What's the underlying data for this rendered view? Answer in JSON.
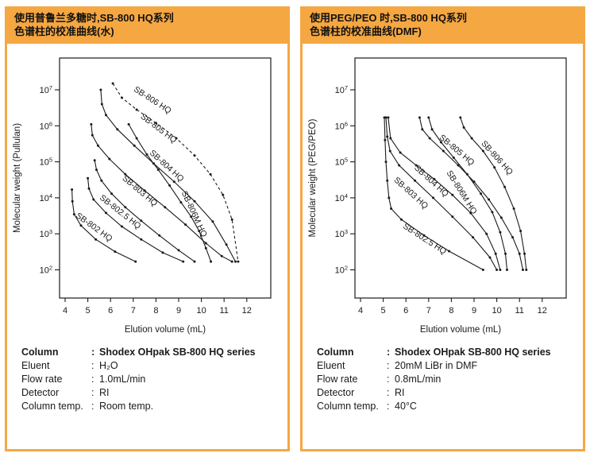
{
  "colon": ":",
  "accent_color": "#F5A742",
  "panels": [
    {
      "header_lines": [
        "使用普鲁兰多糖时,SB-800 HQ系列",
        "色谱柱的校准曲线(水)"
      ],
      "specs": [
        {
          "label": "Column",
          "value": "Shodex OHpak SB-800 HQ series"
        },
        {
          "label": "Eluent",
          "value": "H₂O"
        },
        {
          "label": "Flow rate",
          "value": "1.0mL/min"
        },
        {
          "label": "Detector",
          "value": "RI"
        },
        {
          "label": "Column temp.",
          "value": "Room temp."
        }
      ]
    },
    {
      "header_lines": [
        "使用PEG/PEO 时,SB-800 HQ系列",
        "色谱柱的校准曲线(DMF)"
      ],
      "specs": [
        {
          "label": "Column",
          "value": "Shodex OHpak SB-800 HQ series"
        },
        {
          "label": "Eluent",
          "value": "20mM LiBr in DMF"
        },
        {
          "label": "Flow rate",
          "value": "0.8mL/min"
        },
        {
          "label": "Detector",
          "value": "RI"
        },
        {
          "label": "Column temp.",
          "value": "40°C"
        }
      ]
    }
  ],
  "chart_data": [
    {
      "type": "line",
      "title": "Calibration curves of SB-800 HQ series with pullulan (water)",
      "xlabel": "Elution volume (mL)",
      "ylabel": "Molecular weight (Pullulan)",
      "x_ticks": [
        4,
        5,
        6,
        7,
        8,
        9,
        10,
        11,
        12
      ],
      "y_tick_exponents": [
        2,
        3,
        4,
        5,
        6,
        7
      ],
      "xlim": [
        3.75,
        12.85
      ],
      "ylim_log": [
        1.6,
        7.9
      ],
      "grid": false,
      "legend_position": "on-curve",
      "series": [
        {
          "name": "SB-802 HQ",
          "style": "solid",
          "points": [
            [
              4.3,
              17000
            ],
            [
              4.32,
              8000
            ],
            [
              4.4,
              3500
            ],
            [
              4.7,
              1700
            ],
            [
              5.35,
              700
            ],
            [
              6.2,
              320
            ],
            [
              7.1,
              170
            ]
          ],
          "label_at": [
            4.45,
            3000
          ],
          "label_angle": 36
        },
        {
          "name": "SB-802.5 HQ",
          "style": "solid",
          "points": [
            [
              5.0,
              35000
            ],
            [
              5.05,
              18000
            ],
            [
              5.25,
              9000
            ],
            [
              5.8,
              3800
            ],
            [
              6.5,
              1600
            ],
            [
              7.35,
              700
            ],
            [
              8.3,
              300
            ],
            [
              9.2,
              170
            ]
          ],
          "label_at": [
            5.5,
            9500
          ],
          "label_angle": 38
        },
        {
          "name": "SB-803 HQ",
          "style": "solid",
          "points": [
            [
              5.3,
              110000
            ],
            [
              5.38,
              60000
            ],
            [
              5.6,
              30000
            ],
            [
              6.05,
              13000
            ],
            [
              6.65,
              5500
            ],
            [
              7.35,
              2300
            ],
            [
              8.15,
              900
            ],
            [
              9.0,
              350
            ],
            [
              9.7,
              170
            ]
          ],
          "label_at": [
            6.5,
            33000
          ],
          "label_angle": 40
        },
        {
          "name": "SB-804 HQ",
          "style": "solid",
          "points": [
            [
              5.15,
              1100000
            ],
            [
              5.2,
              550000
            ],
            [
              5.45,
              280000
            ],
            [
              5.95,
              120000
            ],
            [
              6.65,
              45000
            ],
            [
              7.5,
              16000
            ],
            [
              8.4,
              5500
            ],
            [
              9.3,
              1800
            ],
            [
              10.2,
              550
            ],
            [
              10.9,
              240
            ],
            [
              11.35,
              170
            ]
          ],
          "label_at": [
            7.7,
            170000
          ],
          "label_angle": 42
        },
        {
          "name": "SB-805 HQ",
          "style": "solid",
          "points": [
            [
              5.57,
              10000000
            ],
            [
              5.62,
              4000000
            ],
            [
              5.8,
              2000000
            ],
            [
              6.3,
              800000
            ],
            [
              7.05,
              280000
            ],
            [
              7.9,
              90000
            ],
            [
              8.8,
              28000
            ],
            [
              9.7,
              8000
            ],
            [
              10.5,
              2200
            ],
            [
              11.1,
              500
            ],
            [
              11.5,
              170
            ]
          ],
          "label_at": [
            7.3,
            1700000
          ],
          "label_angle": 37
        },
        {
          "name": "SB-806 HQ",
          "style": "dashed",
          "points": [
            [
              6.1,
              15000000
            ],
            [
              6.5,
              6000000
            ],
            [
              7.15,
              2800000
            ],
            [
              8.0,
              1200000
            ],
            [
              8.9,
              450000
            ],
            [
              9.7,
              150000
            ],
            [
              10.4,
              45000
            ],
            [
              10.95,
              12000
            ],
            [
              11.35,
              2500
            ],
            [
              11.62,
              170
            ]
          ],
          "label_at": [
            7.0,
            9500000
          ],
          "label_angle": 33
        },
        {
          "name": "SB-806M HQ",
          "style": "solid",
          "points": [
            [
              6.8,
              1100000
            ],
            [
              7.15,
              450000
            ],
            [
              7.6,
              160000
            ],
            [
              8.1,
              60000
            ],
            [
              8.6,
              22000
            ],
            [
              9.1,
              7500
            ],
            [
              9.55,
              3000
            ],
            [
              9.9,
              1200
            ],
            [
              10.2,
              400
            ],
            [
              10.42,
              170
            ]
          ],
          "label_at": [
            9.12,
            14000
          ],
          "label_angle": 65
        }
      ]
    },
    {
      "type": "line",
      "title": "Calibration curves of SB-800 HQ series with PEG/PEO (DMF)",
      "xlabel": "Elution volume (mL)",
      "ylabel": "Molecular weight (PEG/PEO)",
      "x_ticks": [
        4,
        5,
        6,
        7,
        8,
        9,
        10,
        11,
        12
      ],
      "y_tick_exponents": [
        2,
        3,
        4,
        5,
        6,
        7
      ],
      "xlim": [
        3.75,
        12.85
      ],
      "ylim_log": [
        1.6,
        7.9
      ],
      "grid": false,
      "legend_position": "on-curve",
      "series": [
        {
          "name": "SB-802.5 HQ",
          "style": "solid",
          "points": [
            [
              5.05,
              1700000
            ],
            [
              5.08,
              400000
            ],
            [
              5.12,
              100000
            ],
            [
              5.18,
              30000
            ],
            [
              5.25,
              10000
            ],
            [
              5.35,
              5000
            ],
            [
              5.8,
              2500
            ],
            [
              6.8,
              900
            ],
            [
              7.9,
              330
            ],
            [
              9.4,
              100
            ]
          ],
          "label_at": [
            5.85,
            1500
          ],
          "label_angle": 33
        },
        {
          "name": "SB-803 HQ",
          "style": "solid",
          "points": [
            [
              5.12,
              1700000
            ],
            [
              5.18,
              500000
            ],
            [
              5.3,
              200000
            ],
            [
              5.7,
              80000
            ],
            [
              6.4,
              30000
            ],
            [
              7.2,
              10000
            ],
            [
              8.05,
              3000
            ],
            [
              8.95,
              800
            ],
            [
              9.7,
              220
            ],
            [
              10.0,
              100
            ]
          ],
          "label_at": [
            5.45,
            30000
          ],
          "label_angle": 42
        },
        {
          "name": "SB-804 HQ",
          "style": "solid",
          "points": [
            [
              5.22,
              1700000
            ],
            [
              5.32,
              450000
            ],
            [
              5.75,
              180000
            ],
            [
              6.45,
              80000
            ],
            [
              7.25,
              33000
            ],
            [
              8.05,
              12000
            ],
            [
              8.85,
              3800
            ],
            [
              9.55,
              1000
            ],
            [
              9.95,
              280
            ],
            [
              10.15,
              100
            ]
          ],
          "label_at": [
            6.35,
            65000
          ],
          "label_angle": 42
        },
        {
          "name": "SB-805 HQ",
          "style": "solid",
          "points": [
            [
              6.6,
              1700000
            ],
            [
              6.72,
              800000
            ],
            [
              7.05,
              450000
            ],
            [
              7.65,
              200000
            ],
            [
              8.3,
              80000
            ],
            [
              9.0,
              28000
            ],
            [
              9.65,
              9000
            ],
            [
              10.2,
              2800
            ],
            [
              10.7,
              800
            ],
            [
              11.0,
              280
            ],
            [
              11.15,
              100
            ]
          ],
          "label_at": [
            7.45,
            450000
          ],
          "label_angle": 40
        },
        {
          "name": "SB-806M HQ",
          "style": "solid",
          "points": [
            [
              7.0,
              1700000
            ],
            [
              7.15,
              800000
            ],
            [
              7.55,
              350000
            ],
            [
              8.1,
              130000
            ],
            [
              8.7,
              45000
            ],
            [
              9.3,
              13000
            ],
            [
              9.8,
              4000
            ],
            [
              10.15,
              1100
            ],
            [
              10.38,
              280
            ],
            [
              10.45,
              100
            ]
          ],
          "label_at": [
            7.78,
            50000
          ],
          "label_angle": 58
        },
        {
          "name": "SB-806 HQ",
          "style": "solid",
          "points": [
            [
              8.4,
              1700000
            ],
            [
              8.55,
              900000
            ],
            [
              8.9,
              450000
            ],
            [
              9.4,
              200000
            ],
            [
              9.9,
              70000
            ],
            [
              10.35,
              20000
            ],
            [
              10.75,
              5000
            ],
            [
              11.05,
              1200
            ],
            [
              11.22,
              280
            ],
            [
              11.3,
              100
            ]
          ],
          "label_at": [
            9.3,
            320000
          ],
          "label_angle": 48
        }
      ]
    }
  ]
}
